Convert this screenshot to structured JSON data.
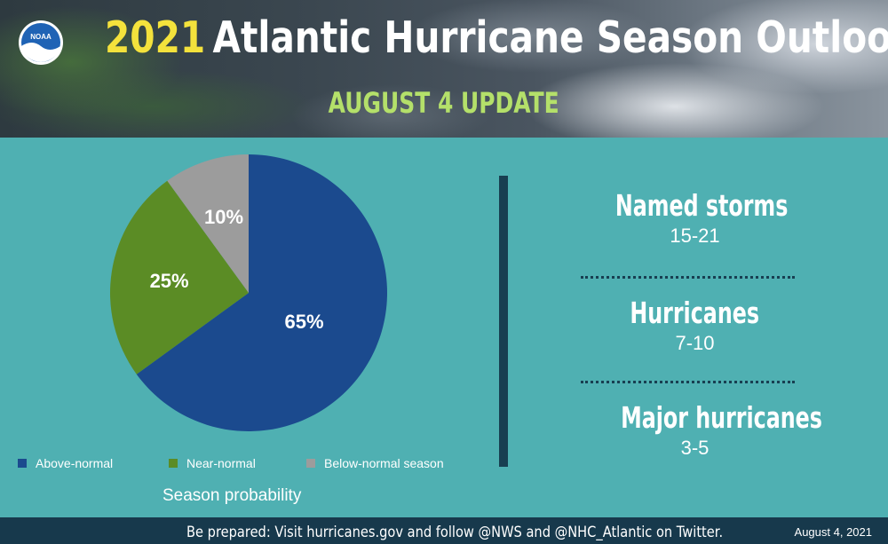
{
  "header": {
    "logo_text": "NOAA",
    "title_year": "2021",
    "title_text": "Atlantic Hurricane Season Outlook",
    "subtitle": "AUGUST 4 UPDATE"
  },
  "chart_data": {
    "type": "pie",
    "title": "Season probability",
    "slices": [
      {
        "label": "Above-normal",
        "value": 65,
        "display": "65%",
        "color": "#1b4a8e"
      },
      {
        "label": "Near-normal",
        "value": 25,
        "display": "25%",
        "color": "#5b8c25"
      },
      {
        "label": "Below-normal season",
        "value": 10,
        "display": "10%",
        "color": "#9c9c9c"
      }
    ],
    "legend_position": "bottom"
  },
  "stats": [
    {
      "label": "Named storms",
      "value": "15-21"
    },
    {
      "label": "Hurricanes",
      "value": "7-10"
    },
    {
      "label": "Major hurricanes",
      "value": "3-5"
    }
  ],
  "footer": {
    "text": "Be prepared: Visit hurricanes.gov and follow @NWS and @NHC_Atlantic on Twitter.",
    "date": "August 4, 2021"
  },
  "colors": {
    "background": "#4fb0b2",
    "title_year": "#f4e23c",
    "subtitle": "#b4e06a",
    "footer_bar": "#17394c"
  }
}
